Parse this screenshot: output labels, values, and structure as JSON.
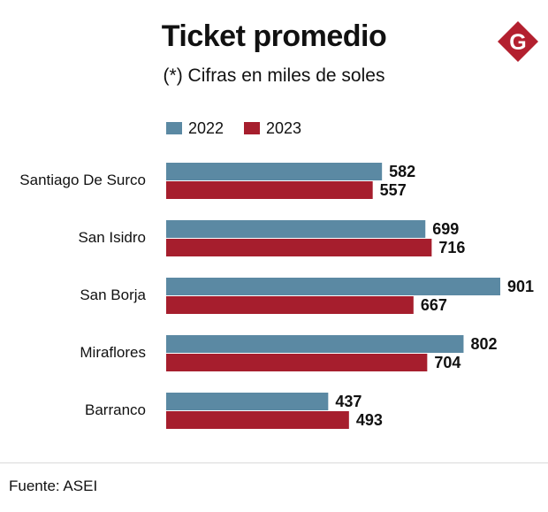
{
  "title": "Ticket promedio",
  "subtitle": "(*) Cifras en miles de soles",
  "logo_letter": "G",
  "source": "Fuente: ASEI",
  "colors": {
    "series_2022": "#5b89a3",
    "series_2023": "#a61e2d",
    "logo": "#b3202f"
  },
  "chart_data": {
    "type": "bar",
    "orientation": "horizontal",
    "title": "Ticket promedio",
    "subtitle": "(*) Cifras en miles de soles",
    "categories": [
      "Santiago De Surco",
      "San Isidro",
      "San Borja",
      "Miraflores",
      "Barranco"
    ],
    "series": [
      {
        "name": "2022",
        "values": [
          582,
          699,
          901,
          802,
          437
        ]
      },
      {
        "name": "2023",
        "values": [
          557,
          716,
          667,
          704,
          493
        ]
      }
    ],
    "legend": "top-left",
    "grid": false,
    "xlabel": "",
    "ylabel": ""
  }
}
